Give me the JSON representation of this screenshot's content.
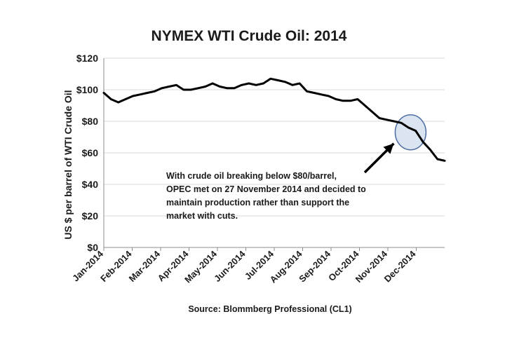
{
  "chart_data": {
    "type": "line",
    "title": "NYMEX WTI Crude Oil: 2014",
    "ylabel": "US $ per barrel of WTI Crude Oil",
    "xlabel": "",
    "source": "Source:  Blommberg Professional (CL1)",
    "ylim": [
      0,
      120
    ],
    "yticks": [
      "$0",
      "$20",
      "$40",
      "$60",
      "$80",
      "$100",
      "$120"
    ],
    "xticks": [
      "Jan-2014",
      "Feb-2014",
      "Mar-2014",
      "Apr-2014",
      "May-2014",
      "Jun-2014",
      "Jul-2014",
      "Aug-2014",
      "Sep-2014",
      "Oct-2014",
      "Nov-2014",
      "Dec-2014"
    ],
    "grid": true,
    "line_color": "#000000",
    "x": [
      "Jan-2014",
      "Jan-2014",
      "Jan-2014",
      "Jan-2014",
      "Feb-2014",
      "Feb-2014",
      "Feb-2014",
      "Feb-2014",
      "Mar-2014",
      "Mar-2014",
      "Mar-2014",
      "Mar-2014",
      "Apr-2014",
      "Apr-2014",
      "Apr-2014",
      "Apr-2014",
      "May-2014",
      "May-2014",
      "May-2014",
      "May-2014",
      "Jun-2014",
      "Jun-2014",
      "Jun-2014",
      "Jun-2014",
      "Jul-2014",
      "Jul-2014",
      "Jul-2014",
      "Jul-2014",
      "Aug-2014",
      "Aug-2014",
      "Aug-2014",
      "Aug-2014",
      "Sep-2014",
      "Sep-2014",
      "Sep-2014",
      "Sep-2014",
      "Oct-2014",
      "Oct-2014",
      "Oct-2014",
      "Oct-2014",
      "Nov-2014",
      "Nov-2014",
      "Nov-2014",
      "Nov-2014",
      "Dec-2014",
      "Dec-2014",
      "Dec-2014",
      "Dec-2014"
    ],
    "series": [
      {
        "values": [
          98,
          94,
          92,
          94,
          96,
          97,
          98,
          99,
          101,
          102,
          103,
          100,
          100,
          101,
          102,
          104,
          102,
          101,
          101,
          103,
          104,
          103,
          104,
          107,
          106,
          105,
          103,
          104,
          99,
          98,
          97,
          96,
          94,
          93,
          93,
          94,
          90,
          86,
          82,
          81,
          80,
          79,
          76,
          74,
          67,
          62,
          56,
          55
        ]
      }
    ],
    "annotation": {
      "lines": [
        "With crude oil  breaking below $80/barrel,",
        "OPEC met on 27 November 2014 and decided to",
        "maintain production rather than support the",
        "market with cuts."
      ],
      "highlight_color": "#dbe5f1",
      "highlight_stroke": "#4f6fa3"
    }
  }
}
